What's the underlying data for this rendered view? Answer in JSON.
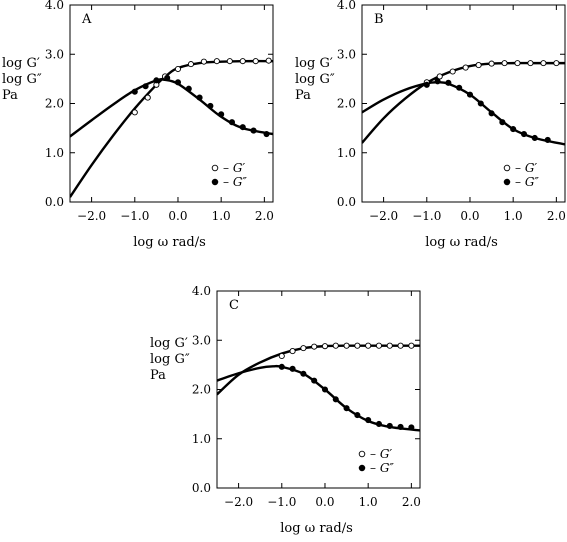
{
  "chart_data": [
    {
      "type": "line",
      "panel_label": "A",
      "xlabel": "log ω  rad/s",
      "ylabel_lines": [
        "log G′",
        "log G″",
        "Pa"
      ],
      "xlim": [
        -2.5,
        2.2
      ],
      "ylim": [
        0,
        4
      ],
      "xticks": [
        -2,
        -1,
        0,
        1,
        2
      ],
      "xtick_labels": [
        "−2.0",
        "−1.0",
        "0.0",
        "1.0",
        "2.0"
      ],
      "yticks": [
        0,
        1,
        2,
        3,
        4
      ],
      "ytick_labels": [
        "0.0",
        "1.0",
        "2.0",
        "3.0",
        "4.0"
      ],
      "legend": {
        "position": "bottom-right",
        "entries": [
          {
            "marker": "open-circle",
            "label": "– G′"
          },
          {
            "marker": "filled-circle",
            "label": "– G″"
          }
        ]
      },
      "series": [
        {
          "label": "G′",
          "kind": "points-open",
          "x": [
            -1.0,
            -0.7,
            -0.5,
            -0.3,
            0.0,
            0.3,
            0.6,
            0.9,
            1.2,
            1.5,
            1.8,
            2.1
          ],
          "y": [
            1.82,
            2.12,
            2.38,
            2.55,
            2.7,
            2.8,
            2.85,
            2.86,
            2.86,
            2.86,
            2.86,
            2.87
          ]
        },
        {
          "label": "G″",
          "kind": "points-filled",
          "x": [
            -1.0,
            -0.75,
            -0.5,
            -0.25,
            0.0,
            0.25,
            0.5,
            0.75,
            1.0,
            1.25,
            1.5,
            1.75,
            2.05
          ],
          "y": [
            2.24,
            2.35,
            2.47,
            2.52,
            2.43,
            2.3,
            2.12,
            1.95,
            1.78,
            1.62,
            1.52,
            1.45,
            1.38
          ]
        },
        {
          "label": "G′ fit",
          "kind": "curve",
          "x": [
            -2.5,
            -2.0,
            -1.5,
            -1.0,
            -0.5,
            -0.25,
            0.0,
            0.5,
            1.0,
            1.5,
            2.2
          ],
          "y": [
            0.1,
            0.75,
            1.35,
            1.9,
            2.38,
            2.58,
            2.72,
            2.82,
            2.85,
            2.86,
            2.86
          ]
        },
        {
          "label": "G″ fit",
          "kind": "curve",
          "x": [
            -2.5,
            -2.0,
            -1.5,
            -1.0,
            -0.5,
            -0.3,
            0.0,
            0.5,
            1.0,
            1.5,
            2.2
          ],
          "y": [
            1.33,
            1.66,
            1.98,
            2.27,
            2.47,
            2.48,
            2.4,
            2.08,
            1.73,
            1.5,
            1.38
          ]
        }
      ]
    },
    {
      "type": "line",
      "panel_label": "B",
      "xlabel": "log ω  rad/s",
      "ylabel_lines": [
        "log G′",
        "log G″",
        "Pa"
      ],
      "xlim": [
        -2.5,
        2.2
      ],
      "ylim": [
        0,
        4
      ],
      "xticks": [
        -2,
        -1,
        0,
        1,
        2
      ],
      "xtick_labels": [
        "−2.0",
        "−1.0",
        "0.0",
        "1.0",
        "2.0"
      ],
      "yticks": [
        0,
        1,
        2,
        3,
        4
      ],
      "ytick_labels": [
        "0.0",
        "1.0",
        "2.0",
        "3.0",
        "4.0"
      ],
      "legend": {
        "position": "bottom-right",
        "entries": [
          {
            "marker": "open-circle",
            "label": "– G′"
          },
          {
            "marker": "filled-circle",
            "label": "– G″"
          }
        ]
      },
      "series": [
        {
          "label": "G′",
          "kind": "points-open",
          "x": [
            -1.0,
            -0.7,
            -0.4,
            -0.1,
            0.2,
            0.5,
            0.8,
            1.1,
            1.4,
            1.7,
            2.0
          ],
          "y": [
            2.43,
            2.55,
            2.65,
            2.73,
            2.78,
            2.81,
            2.82,
            2.82,
            2.82,
            2.82,
            2.82
          ]
        },
        {
          "label": "G″",
          "kind": "points-filled",
          "x": [
            -1.0,
            -0.75,
            -0.5,
            -0.25,
            0.0,
            0.25,
            0.5,
            0.75,
            1.0,
            1.25,
            1.5,
            1.8
          ],
          "y": [
            2.38,
            2.45,
            2.42,
            2.32,
            2.18,
            2.0,
            1.8,
            1.62,
            1.48,
            1.38,
            1.3,
            1.26
          ]
        },
        {
          "label": "G′ fit",
          "kind": "curve",
          "x": [
            -2.5,
            -2.0,
            -1.5,
            -1.0,
            -0.5,
            0.0,
            0.5,
            1.0,
            1.5,
            2.2
          ],
          "y": [
            1.2,
            1.7,
            2.1,
            2.42,
            2.63,
            2.76,
            2.81,
            2.82,
            2.82,
            2.82
          ]
        },
        {
          "label": "G″ fit",
          "kind": "curve",
          "x": [
            -2.5,
            -2.0,
            -1.5,
            -1.0,
            -0.75,
            -0.5,
            0.0,
            0.5,
            1.0,
            1.5,
            2.2
          ],
          "y": [
            1.82,
            2.08,
            2.28,
            2.41,
            2.43,
            2.4,
            2.18,
            1.82,
            1.48,
            1.3,
            1.17
          ]
        }
      ]
    },
    {
      "type": "line",
      "panel_label": "C",
      "xlabel": "log ω  rad/s",
      "ylabel_lines": [
        "log G′",
        "log G″",
        "Pa"
      ],
      "xlim": [
        -2.5,
        2.2
      ],
      "ylim": [
        0,
        4
      ],
      "xticks": [
        -2,
        -1,
        0,
        1,
        2
      ],
      "xtick_labels": [
        "−2.0",
        "−1.0",
        "0.0",
        "1.0",
        "2.0"
      ],
      "yticks": [
        0,
        1,
        2,
        3,
        4
      ],
      "ytick_labels": [
        "0.0",
        "1.0",
        "2.0",
        "3.0",
        "4.0"
      ],
      "legend": {
        "position": "bottom-right",
        "entries": [
          {
            "marker": "open-circle",
            "label": "– G′"
          },
          {
            "marker": "filled-circle",
            "label": "– G″"
          }
        ]
      },
      "series": [
        {
          "label": "G′",
          "kind": "points-open",
          "x": [
            -1.0,
            -0.75,
            -0.5,
            -0.25,
            0.0,
            0.25,
            0.5,
            0.75,
            1.0,
            1.25,
            1.5,
            1.75,
            2.0
          ],
          "y": [
            2.68,
            2.78,
            2.84,
            2.87,
            2.88,
            2.89,
            2.89,
            2.89,
            2.89,
            2.89,
            2.89,
            2.89,
            2.89
          ]
        },
        {
          "label": "G″",
          "kind": "points-filled",
          "x": [
            -1.0,
            -0.75,
            -0.5,
            -0.25,
            0.0,
            0.25,
            0.5,
            0.75,
            1.0,
            1.25,
            1.5,
            1.75,
            2.0
          ],
          "y": [
            2.46,
            2.42,
            2.32,
            2.18,
            2.0,
            1.8,
            1.62,
            1.48,
            1.38,
            1.3,
            1.26,
            1.24,
            1.23
          ]
        },
        {
          "label": "G′ fit",
          "kind": "curve",
          "x": [
            -2.5,
            -2.0,
            -1.5,
            -1.0,
            -0.5,
            0.0,
            0.5,
            1.0,
            1.5,
            2.2
          ],
          "y": [
            1.9,
            2.3,
            2.55,
            2.73,
            2.84,
            2.88,
            2.89,
            2.89,
            2.89,
            2.89
          ]
        },
        {
          "label": "G″ fit",
          "kind": "curve",
          "x": [
            -2.5,
            -2.0,
            -1.5,
            -1.2,
            -1.0,
            -0.5,
            0.0,
            0.5,
            1.0,
            1.5,
            2.2
          ],
          "y": [
            2.18,
            2.33,
            2.44,
            2.47,
            2.46,
            2.32,
            2.0,
            1.62,
            1.36,
            1.24,
            1.17
          ]
        }
      ]
    }
  ]
}
